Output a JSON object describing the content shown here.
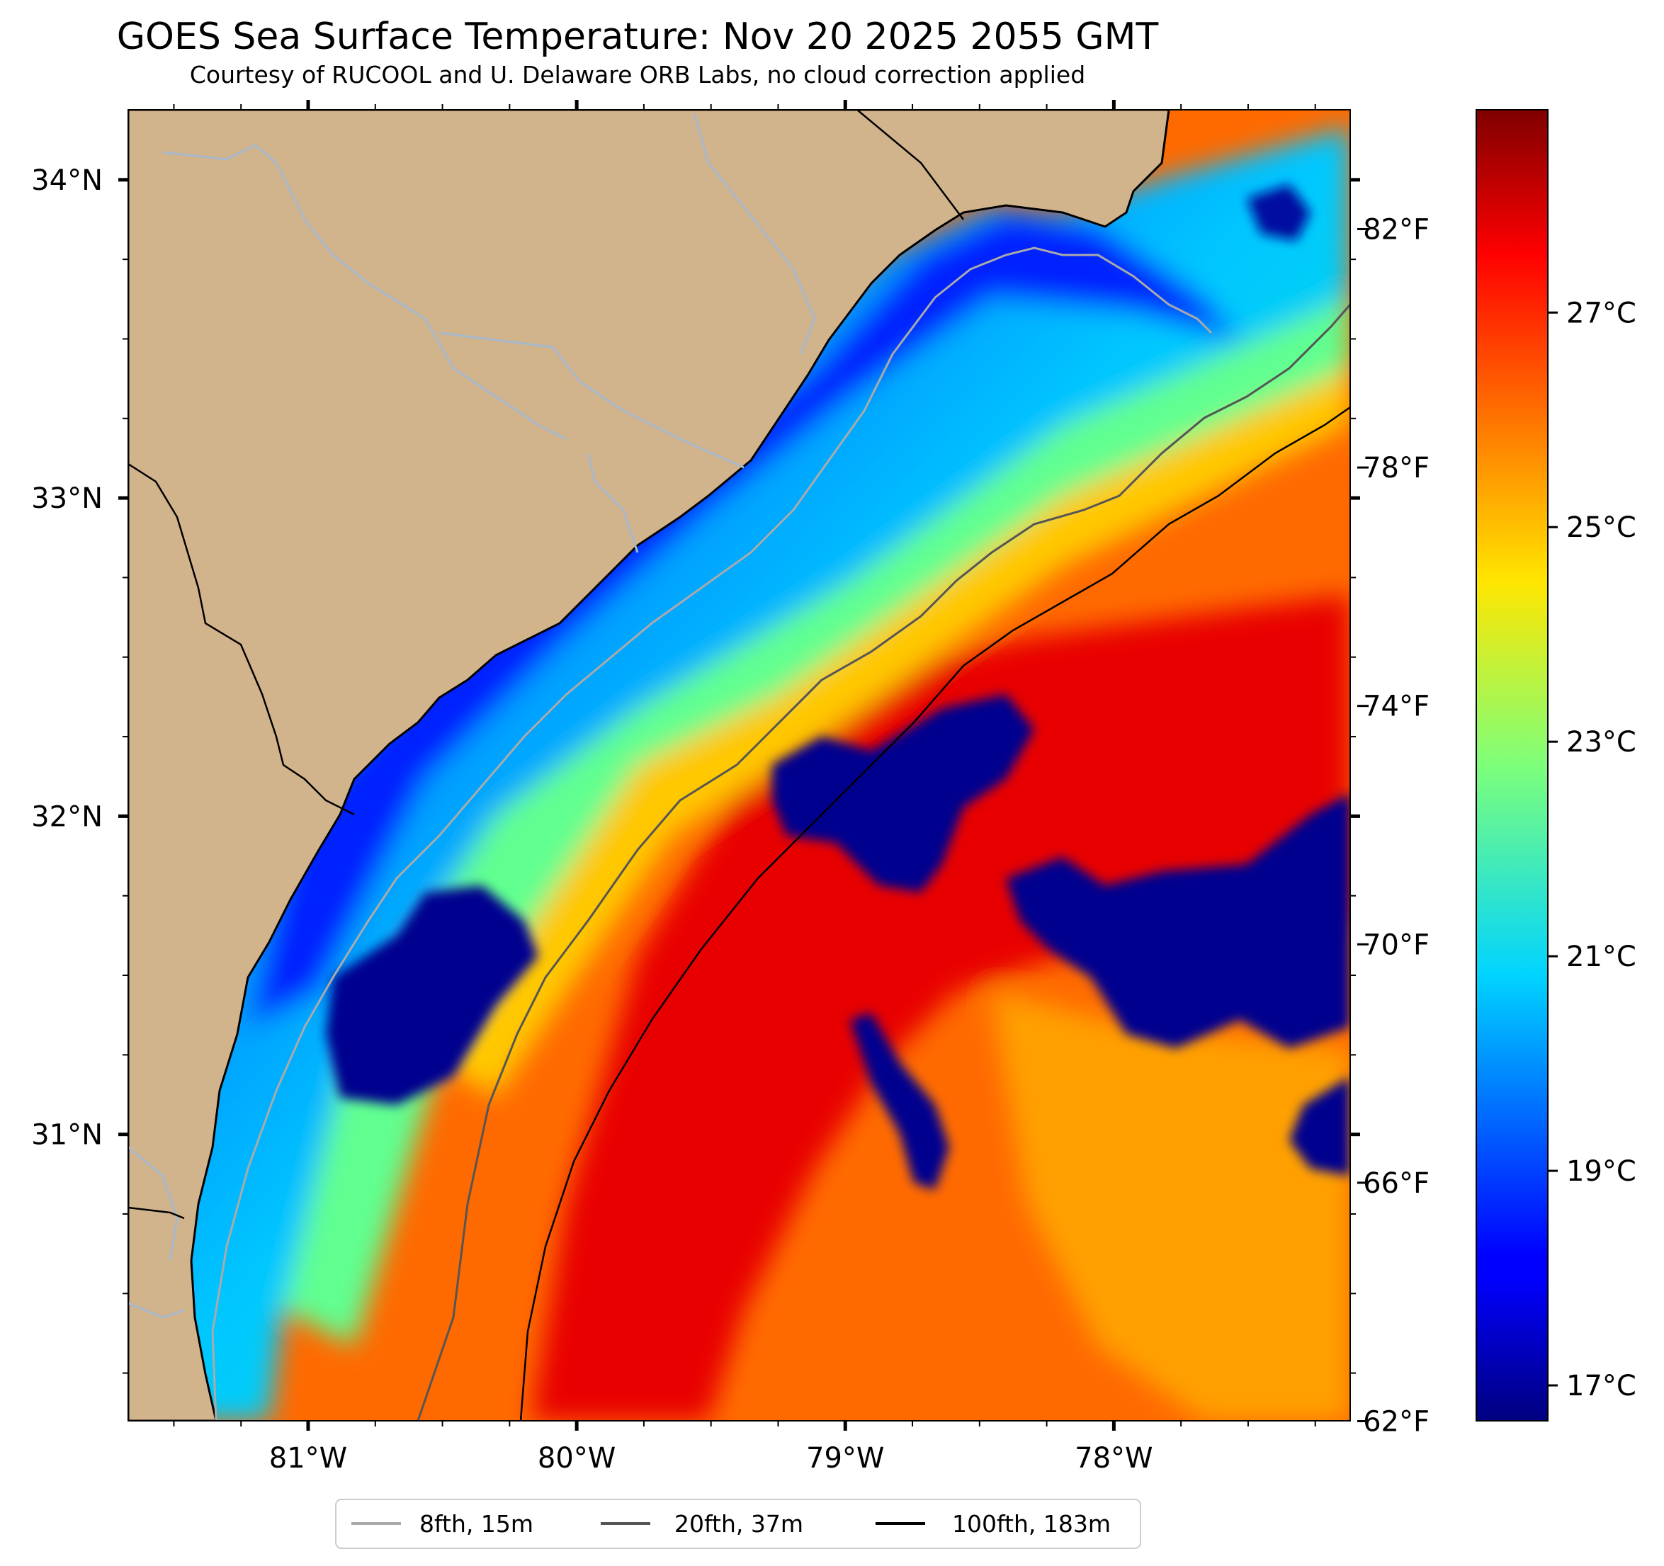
{
  "title": "GOES Sea Surface Temperature: Nov 20 2025 2055 GMT",
  "subtitle": "Courtesy of RUCOOL and U. Delaware ORB Labs, no cloud correction applied",
  "map": {
    "lon_range": [
      -81.67,
      -77.12
    ],
    "lat_range": [
      30.1,
      34.22
    ],
    "lon_ticks": [
      {
        "value": -81,
        "label": "81°W"
      },
      {
        "value": -80,
        "label": "80°W"
      },
      {
        "value": -79,
        "label": "79°W"
      },
      {
        "value": -78,
        "label": "78°W"
      }
    ],
    "lat_ticks": [
      {
        "value": 34,
        "label": "34°N"
      },
      {
        "value": 33,
        "label": "33°N"
      },
      {
        "value": 32,
        "label": "32°N"
      },
      {
        "value": 31,
        "label": "31°N"
      }
    ],
    "colors": {
      "land": "#d2b48c",
      "rivers": "#a8b8cc",
      "coast": "#000000",
      "isobath_8fth": "#aaaaaa",
      "isobath_20fth": "#555555",
      "isobath_100fth": "#000000"
    }
  },
  "colorbar": {
    "colormap": "jet",
    "range_c": [
      16.67,
      28.89
    ],
    "celsius_ticks": [
      {
        "value": 17,
        "label": "17°C"
      },
      {
        "value": 19,
        "label": "19°C"
      },
      {
        "value": 21,
        "label": "21°C"
      },
      {
        "value": 23,
        "label": "23°C"
      },
      {
        "value": 25,
        "label": "25°C"
      },
      {
        "value": 27,
        "label": "27°C"
      }
    ],
    "fahrenheit_ticks": [
      {
        "value": 62,
        "label": "62°F"
      },
      {
        "value": 66,
        "label": "66°F"
      },
      {
        "value": 70,
        "label": "70°F"
      },
      {
        "value": 74,
        "label": "74°F"
      },
      {
        "value": 78,
        "label": "78°F"
      },
      {
        "value": 82,
        "label": "82°F"
      }
    ]
  },
  "legend": {
    "placement": "bottom-center",
    "items": [
      {
        "label": "8fth, 15m",
        "color": "#aaaaaa"
      },
      {
        "label": "20fth, 37m",
        "color": "#555555"
      },
      {
        "label": "100fth, 183m",
        "color": "#000000"
      }
    ]
  }
}
